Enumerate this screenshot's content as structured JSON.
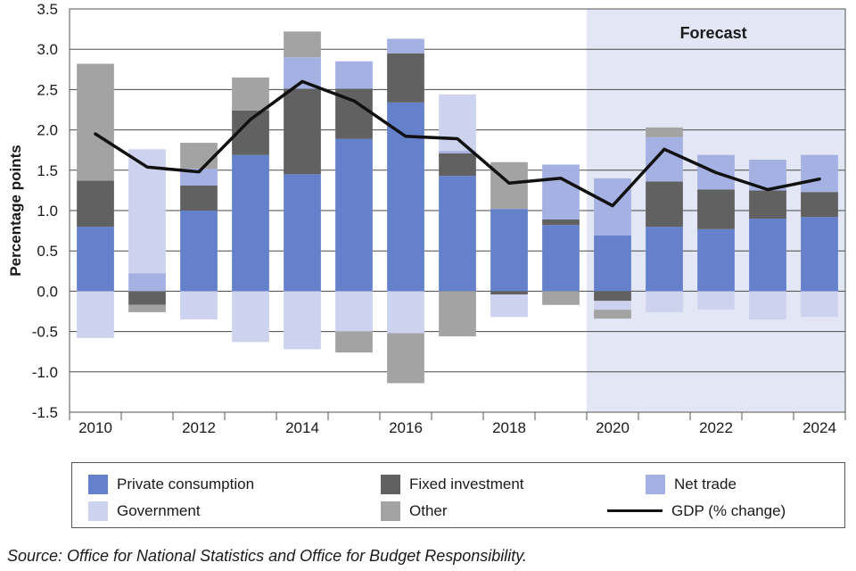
{
  "chart_data": {
    "type": "bar",
    "subtype": "stacked-bar-with-line",
    "ylabel": "Percentage points",
    "xlabel": "",
    "ylim": [
      -1.5,
      3.5
    ],
    "yticks": [
      -1.5,
      -1.0,
      -0.5,
      0.0,
      0.5,
      1.0,
      1.5,
      2.0,
      2.5,
      3.0,
      3.5
    ],
    "ytick_labels": [
      "-1.5",
      "-1.0",
      "-0.5",
      "0.0",
      "0.5",
      "1.0",
      "1.5",
      "2.0",
      "2.5",
      "3.0",
      "3.5"
    ],
    "categories": [
      2010,
      2011,
      2012,
      2013,
      2014,
      2015,
      2016,
      2017,
      2018,
      2019,
      2020,
      2021,
      2022,
      2023,
      2024
    ],
    "xtick_labels": [
      "2010",
      "2012",
      "2014",
      "2016",
      "2018",
      "2020",
      "2022",
      "2024"
    ],
    "forecast_label": "Forecast",
    "forecast_start": 2020,
    "grid": true,
    "series": [
      {
        "name": "Private consumption",
        "color": "#6681cc",
        "type": "bar",
        "values": [
          0.8,
          0.0,
          1.0,
          1.69,
          1.45,
          1.89,
          2.34,
          1.43,
          1.02,
          0.82,
          0.69,
          0.8,
          0.77,
          0.9,
          0.92
        ]
      },
      {
        "name": "Fixed investment",
        "color": "#616161",
        "type": "bar",
        "values": [
          0.57,
          -0.17,
          0.31,
          0.55,
          1.06,
          0.62,
          0.61,
          0.28,
          -0.04,
          0.07,
          -0.12,
          0.56,
          0.49,
          0.35,
          0.31
        ]
      },
      {
        "name": "Net trade",
        "color": "#a4b1e2",
        "type": "bar",
        "values": [
          0.0,
          0.22,
          0.21,
          0.0,
          0.39,
          0.34,
          0.18,
          0.03,
          0.0,
          0.68,
          0.71,
          0.55,
          0.43,
          0.38,
          0.46
        ]
      },
      {
        "name": "Government",
        "color": "#cdd3ef",
        "type": "bar",
        "values": [
          -0.58,
          1.54,
          -0.35,
          -0.63,
          -0.72,
          -0.5,
          -0.52,
          0.7,
          -0.28,
          0.0,
          -0.11,
          -0.26,
          -0.23,
          -0.35,
          -0.32
        ]
      },
      {
        "name": "Other",
        "color": "#a3a3a3",
        "type": "bar",
        "values": [
          1.45,
          -0.09,
          0.32,
          0.41,
          0.32,
          -0.26,
          -0.62,
          -0.56,
          0.58,
          -0.17,
          -0.11,
          0.12,
          0.0,
          0.0,
          0.0
        ]
      },
      {
        "name": "GDP (% change)",
        "color": "#111111",
        "type": "line",
        "values": [
          1.95,
          1.54,
          1.48,
          2.13,
          2.6,
          2.36,
          1.92,
          1.89,
          1.34,
          1.4,
          1.06,
          1.76,
          1.47,
          1.26,
          1.39
        ]
      }
    ],
    "legend": {
      "position": "bottom",
      "entries": [
        "Private consumption",
        "Fixed investment",
        "Net trade",
        "Government",
        "Other",
        "GDP (% change)"
      ]
    }
  },
  "source": "Source: Office for National Statistics and Office for Budget Responsibility."
}
